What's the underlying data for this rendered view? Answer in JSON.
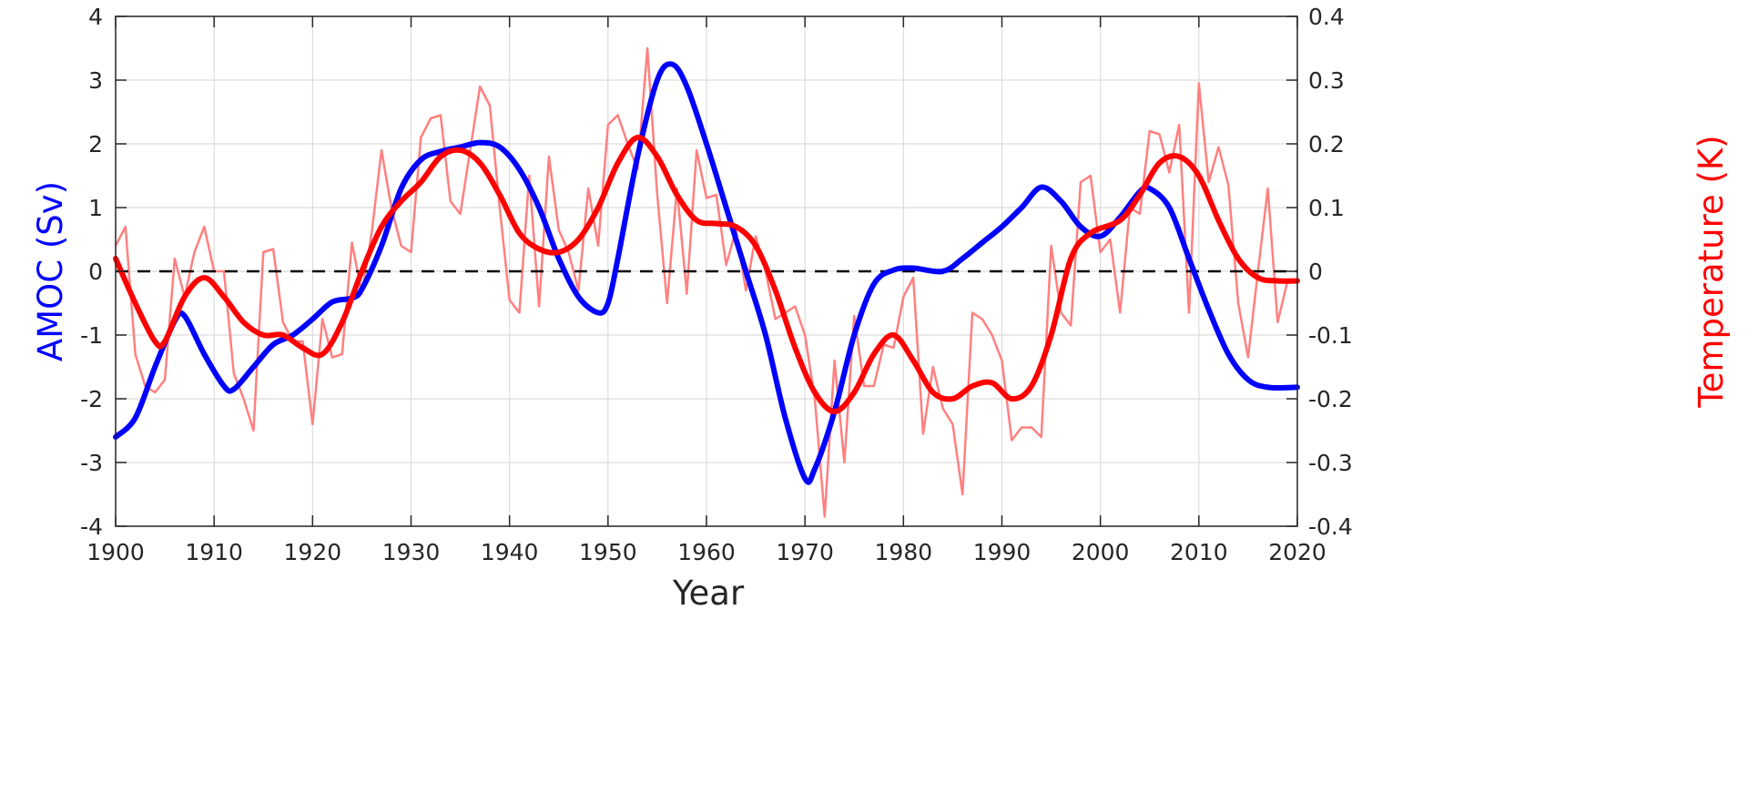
{
  "chart_data": {
    "type": "line",
    "xlabel": "Year",
    "ylabel_left": "AMOC (Sv)",
    "ylabel_right": "Temperature (K)",
    "xlim": [
      1900,
      2020
    ],
    "ylim_left": [
      -4,
      4
    ],
    "ylim_right": [
      -0.4,
      0.4
    ],
    "x_ticks": [
      "1900",
      "1910",
      "1920",
      "1930",
      "1940",
      "1950",
      "1960",
      "1970",
      "1980",
      "1990",
      "2000",
      "2010",
      "2020"
    ],
    "y_ticks_left": [
      "4",
      "3",
      "2",
      "1",
      "0",
      "-1",
      "-2",
      "-3",
      "-4"
    ],
    "y_ticks_right": [
      "0.4",
      "0.3",
      "0.2",
      "0.1",
      "0",
      "-0.1",
      "-0.2",
      "-0.3",
      "-0.4"
    ],
    "grid": true,
    "reference_line": {
      "value": 0,
      "style": "dashed",
      "color": "#000000"
    },
    "colors": {
      "amoc": "#0000ff",
      "temperature_smooth": "#ff0000",
      "temperature_annual": "#ff8080"
    },
    "series": [
      {
        "axis": "left",
        "kind": "smoothed",
        "color": "#0000ff",
        "points": [
          [
            1900,
            -2.6
          ],
          [
            1902,
            -2.3
          ],
          [
            1904,
            -1.5
          ],
          [
            1906,
            -0.78
          ],
          [
            1907,
            -0.7
          ],
          [
            1909,
            -1.3
          ],
          [
            1911,
            -1.8
          ],
          [
            1912,
            -1.85
          ],
          [
            1914,
            -1.5
          ],
          [
            1916,
            -1.15
          ],
          [
            1918,
            -1.0
          ],
          [
            1920,
            -0.75
          ],
          [
            1922,
            -0.48
          ],
          [
            1924,
            -0.42
          ],
          [
            1925,
            -0.28
          ],
          [
            1927,
            0.4
          ],
          [
            1929,
            1.3
          ],
          [
            1931,
            1.75
          ],
          [
            1933,
            1.88
          ],
          [
            1935,
            1.95
          ],
          [
            1937,
            2.02
          ],
          [
            1939,
            1.95
          ],
          [
            1941,
            1.6
          ],
          [
            1943,
            1.0
          ],
          [
            1945,
            0.2
          ],
          [
            1947,
            -0.4
          ],
          [
            1949,
            -0.65
          ],
          [
            1950,
            -0.5
          ],
          [
            1951,
            0.2
          ],
          [
            1953,
            1.8
          ],
          [
            1955,
            3.0
          ],
          [
            1956.5,
            3.25
          ],
          [
            1958,
            2.9
          ],
          [
            1960,
            2.0
          ],
          [
            1962,
            1.0
          ],
          [
            1964,
            0.0
          ],
          [
            1966,
            -1.0
          ],
          [
            1968,
            -2.3
          ],
          [
            1970,
            -3.25
          ],
          [
            1971,
            -3.1
          ],
          [
            1973,
            -2.2
          ],
          [
            1975,
            -1.0
          ],
          [
            1977,
            -0.2
          ],
          [
            1979,
            0.02
          ],
          [
            1981,
            0.05
          ],
          [
            1984,
            0.0
          ],
          [
            1986,
            0.2
          ],
          [
            1988,
            0.45
          ],
          [
            1990,
            0.7
          ],
          [
            1992,
            1.0
          ],
          [
            1994,
            1.32
          ],
          [
            1996,
            1.1
          ],
          [
            1998,
            0.7
          ],
          [
            2000,
            0.55
          ],
          [
            2002,
            0.85
          ],
          [
            2004,
            1.25
          ],
          [
            2005,
            1.3
          ],
          [
            2007,
            1.0
          ],
          [
            2009,
            0.2
          ],
          [
            2011,
            -0.6
          ],
          [
            2013,
            -1.3
          ],
          [
            2015,
            -1.7
          ],
          [
            2017,
            -1.82
          ],
          [
            2020,
            -1.82
          ]
        ]
      },
      {
        "axis": "right",
        "kind": "annual",
        "color": "#ff8080",
        "x_start": 1900,
        "values": [
          0.04,
          0.07,
          -0.13,
          -0.18,
          -0.19,
          -0.17,
          0.02,
          -0.04,
          0.03,
          0.07,
          0.0,
          0.0,
          -0.16,
          -0.2,
          -0.25,
          0.03,
          0.035,
          -0.08,
          -0.11,
          -0.11,
          -0.24,
          -0.075,
          -0.135,
          -0.13,
          0.045,
          -0.035,
          0.06,
          0.19,
          0.1,
          0.04,
          0.03,
          0.21,
          0.24,
          0.245,
          0.11,
          0.09,
          0.19,
          0.29,
          0.26,
          0.1,
          -0.045,
          -0.065,
          0.15,
          -0.055,
          0.18,
          0.065,
          0.03,
          -0.03,
          0.13,
          0.04,
          0.23,
          0.245,
          0.2,
          0.16,
          0.35,
          0.12,
          -0.05,
          0.13,
          -0.035,
          0.19,
          0.115,
          0.12,
          0.01,
          0.065,
          -0.03,
          0.055,
          0.0,
          -0.075,
          -0.065,
          -0.055,
          -0.1,
          -0.2,
          -0.385,
          -0.14,
          -0.3,
          -0.07,
          -0.18,
          -0.18,
          -0.115,
          -0.12,
          -0.04,
          -0.01,
          -0.255,
          -0.15,
          -0.215,
          -0.24,
          -0.35,
          -0.065,
          -0.075,
          -0.1,
          -0.14,
          -0.265,
          -0.245,
          -0.245,
          -0.26,
          0.04,
          -0.065,
          -0.085,
          0.14,
          0.15,
          0.03,
          0.05,
          -0.065,
          0.1,
          0.09,
          0.22,
          0.215,
          0.155,
          0.23,
          -0.065,
          0.295,
          0.14,
          0.195,
          0.135,
          -0.05,
          -0.135,
          0.0,
          0.13,
          -0.08,
          -0.015
        ]
      },
      {
        "axis": "right",
        "kind": "smoothed",
        "color": "#ff0000",
        "points": [
          [
            1900,
            0.02
          ],
          [
            1902,
            -0.05
          ],
          [
            1904,
            -0.11
          ],
          [
            1905,
            -0.11
          ],
          [
            1907,
            -0.04
          ],
          [
            1909,
            -0.01
          ],
          [
            1911,
            -0.04
          ],
          [
            1913,
            -0.08
          ],
          [
            1915,
            -0.1
          ],
          [
            1917,
            -0.1
          ],
          [
            1919,
            -0.12
          ],
          [
            1921,
            -0.13
          ],
          [
            1923,
            -0.08
          ],
          [
            1925,
            0.0
          ],
          [
            1927,
            0.07
          ],
          [
            1929,
            0.11
          ],
          [
            1931,
            0.14
          ],
          [
            1933,
            0.18
          ],
          [
            1935,
            0.19
          ],
          [
            1937,
            0.17
          ],
          [
            1939,
            0.12
          ],
          [
            1941,
            0.06
          ],
          [
            1943,
            0.035
          ],
          [
            1945,
            0.03
          ],
          [
            1947,
            0.05
          ],
          [
            1949,
            0.1
          ],
          [
            1951,
            0.17
          ],
          [
            1953,
            0.21
          ],
          [
            1955,
            0.18
          ],
          [
            1957,
            0.12
          ],
          [
            1959,
            0.08
          ],
          [
            1961,
            0.075
          ],
          [
            1963,
            0.07
          ],
          [
            1965,
            0.04
          ],
          [
            1967,
            -0.03
          ],
          [
            1969,
            -0.12
          ],
          [
            1971,
            -0.19
          ],
          [
            1973,
            -0.22
          ],
          [
            1975,
            -0.19
          ],
          [
            1977,
            -0.13
          ],
          [
            1979,
            -0.1
          ],
          [
            1981,
            -0.14
          ],
          [
            1983,
            -0.19
          ],
          [
            1985,
            -0.2
          ],
          [
            1987,
            -0.18
          ],
          [
            1989,
            -0.175
          ],
          [
            1991,
            -0.2
          ],
          [
            1993,
            -0.18
          ],
          [
            1995,
            -0.1
          ],
          [
            1997,
            0.02
          ],
          [
            1999,
            0.06
          ],
          [
            2002,
            0.08
          ],
          [
            2004,
            0.12
          ],
          [
            2006,
            0.17
          ],
          [
            2008,
            0.18
          ],
          [
            2010,
            0.15
          ],
          [
            2012,
            0.08
          ],
          [
            2014,
            0.02
          ],
          [
            2016,
            -0.01
          ],
          [
            2018,
            -0.015
          ],
          [
            2020,
            -0.015
          ]
        ]
      }
    ]
  }
}
